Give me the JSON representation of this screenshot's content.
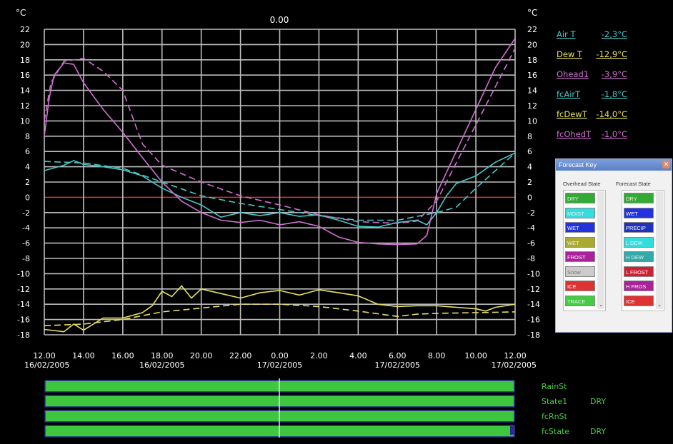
{
  "chart_data": {
    "type": "line",
    "unit_label": "°C",
    "top_value": "0.00",
    "y_range": [
      -18,
      22
    ],
    "y_ticks": [
      22,
      20,
      18,
      16,
      14,
      12,
      10,
      8,
      6,
      4,
      2,
      0,
      -2,
      -4,
      -6,
      -8,
      -10,
      -12,
      -14,
      -16,
      -18
    ],
    "x_range": [
      "2005-02-16 12:00",
      "2005-02-17 12:00"
    ],
    "x_tick_labels": [
      {
        "time": "12.00",
        "date": "16/02/2005"
      },
      {
        "time": "14.00",
        "date": ""
      },
      {
        "time": "16.00",
        "date": ""
      },
      {
        "time": "18.00",
        "date": "16/02/2005"
      },
      {
        "time": "20.00",
        "date": ""
      },
      {
        "time": "22.00",
        "date": ""
      },
      {
        "time": "0.00",
        "date": "17/02/2005"
      },
      {
        "time": "2.00",
        "date": ""
      },
      {
        "time": "4.00",
        "date": ""
      },
      {
        "time": "6.00",
        "date": "17/02/2005"
      },
      {
        "time": "8.00",
        "date": ""
      },
      {
        "time": "10.00",
        "date": ""
      },
      {
        "time": "12.00",
        "date": "17/02/2005"
      }
    ],
    "series": [
      {
        "name": "Air T",
        "value": "-2,3°C",
        "color": "#44c8c8",
        "dashed": false,
        "points": [
          [
            "2005-02-16 12:00",
            3.5
          ],
          [
            "2005-02-16 13:00",
            4.2
          ],
          [
            "2005-02-16 13:30",
            4.8
          ],
          [
            "2005-02-16 14:00",
            4.3
          ],
          [
            "2005-02-16 15:00",
            4.0
          ],
          [
            "2005-02-16 16:00",
            3.6
          ],
          [
            "2005-02-16 17:00",
            2.8
          ],
          [
            "2005-02-16 18:00",
            1.2
          ],
          [
            "2005-02-16 19:00",
            0
          ],
          [
            "2005-02-16 20:00",
            -1.0
          ],
          [
            "2005-02-16 21:00",
            -2.6
          ],
          [
            "2005-02-16 22:00",
            -2.0
          ],
          [
            "2005-02-16 23:00",
            -2.4
          ],
          [
            "2005-02-17 00:00",
            -2.0
          ],
          [
            "2005-02-17 01:00",
            -2.5
          ],
          [
            "2005-02-17 02:00",
            -2.3
          ],
          [
            "2005-02-17 03:00",
            -3.0
          ],
          [
            "2005-02-17 04:00",
            -3.8
          ],
          [
            "2005-02-17 05:00",
            -3.9
          ],
          [
            "2005-02-17 06:00",
            -3.3
          ],
          [
            "2005-02-17 07:00",
            -3.0
          ],
          [
            "2005-02-17 07:30",
            -3.6
          ],
          [
            "2005-02-17 08:00",
            -2.0
          ],
          [
            "2005-02-17 08:30",
            0.2
          ],
          [
            "2005-02-17 09:00",
            1.8
          ],
          [
            "2005-02-17 10:00",
            2.8
          ],
          [
            "2005-02-17 11:00",
            4.6
          ],
          [
            "2005-02-17 12:00",
            5.8
          ]
        ]
      },
      {
        "name": "Dew T",
        "value": "-12,9°C",
        "color": "#e8e060",
        "dashed": false,
        "points": [
          [
            "2005-02-16 12:00",
            -17.3
          ],
          [
            "2005-02-16 13:00",
            -17.6
          ],
          [
            "2005-02-16 13:30",
            -16.6
          ],
          [
            "2005-02-16 14:00",
            -17.4
          ],
          [
            "2005-02-16 15:00",
            -15.8
          ],
          [
            "2005-02-16 16:00",
            -15.8
          ],
          [
            "2005-02-16 17:00",
            -15.1
          ],
          [
            "2005-02-16 17:30",
            -14.2
          ],
          [
            "2005-02-16 18:00",
            -12.3
          ],
          [
            "2005-02-16 18:30",
            -13.0
          ],
          [
            "2005-02-16 19:00",
            -11.6
          ],
          [
            "2005-02-16 19:30",
            -13.2
          ],
          [
            "2005-02-16 20:00",
            -12.0
          ],
          [
            "2005-02-16 21:00",
            -12.6
          ],
          [
            "2005-02-16 22:00",
            -13.2
          ],
          [
            "2005-02-16 23:00",
            -12.5
          ],
          [
            "2005-02-17 00:00",
            -12.2
          ],
          [
            "2005-02-17 01:00",
            -12.8
          ],
          [
            "2005-02-17 02:00",
            -12.1
          ],
          [
            "2005-02-17 03:00",
            -12.5
          ],
          [
            "2005-02-17 04:00",
            -12.9
          ],
          [
            "2005-02-17 05:00",
            -14.0
          ],
          [
            "2005-02-17 06:00",
            -14.3
          ],
          [
            "2005-02-17 07:00",
            -14.2
          ],
          [
            "2005-02-17 08:00",
            -14.2
          ],
          [
            "2005-02-17 09:00",
            -14.4
          ],
          [
            "2005-02-17 10:00",
            -14.6
          ],
          [
            "2005-02-17 10:30",
            -14.9
          ],
          [
            "2005-02-17 11:00",
            -14.4
          ],
          [
            "2005-02-17 12:00",
            -14.0
          ]
        ]
      },
      {
        "name": "Ohead1",
        "value": "-3,9°C",
        "color": "#d070d0",
        "dashed": false,
        "points": [
          [
            "2005-02-16 12:00",
            8
          ],
          [
            "2005-02-16 12:15",
            13
          ],
          [
            "2005-02-16 12:30",
            16
          ],
          [
            "2005-02-16 13:00",
            17.6
          ],
          [
            "2005-02-16 13:30",
            17.4
          ],
          [
            "2005-02-16 14:00",
            15.0
          ],
          [
            "2005-02-16 15:00",
            11.5
          ],
          [
            "2005-02-16 16:00",
            8.5
          ],
          [
            "2005-02-16 17:00",
            5.2
          ],
          [
            "2005-02-16 18:00",
            2.0
          ],
          [
            "2005-02-16 19:00",
            -0.5
          ],
          [
            "2005-02-16 20:00",
            -2.0
          ],
          [
            "2005-02-16 21:00",
            -3.0
          ],
          [
            "2005-02-16 22:00",
            -3.3
          ],
          [
            "2005-02-16 23:00",
            -3.0
          ],
          [
            "2005-02-17 00:00",
            -3.6
          ],
          [
            "2005-02-17 01:00",
            -3.2
          ],
          [
            "2005-02-17 02:00",
            -3.8
          ],
          [
            "2005-02-17 03:00",
            -5.2
          ],
          [
            "2005-02-17 04:00",
            -5.9
          ],
          [
            "2005-02-17 05:00",
            -6.1
          ],
          [
            "2005-02-17 06:00",
            -6.2
          ],
          [
            "2005-02-17 07:00",
            -6.1
          ],
          [
            "2005-02-17 07:30",
            -5.0
          ],
          [
            "2005-02-17 08:00",
            0.5
          ],
          [
            "2005-02-17 09:00",
            6.0
          ],
          [
            "2005-02-17 10:00",
            11.5
          ],
          [
            "2005-02-17 11:00",
            17.0
          ],
          [
            "2005-02-17 12:00",
            20.8
          ]
        ]
      },
      {
        "name": "fcAirT",
        "value": "-1,8°C",
        "color": "#44c8c8",
        "dashed": true,
        "points": [
          [
            "2005-02-16 12:00",
            4.7
          ],
          [
            "2005-02-16 14:00",
            4.5
          ],
          [
            "2005-02-16 16:00",
            3.8
          ],
          [
            "2005-02-16 18:00",
            2.0
          ],
          [
            "2005-02-16 20:00",
            0.2
          ],
          [
            "2005-02-16 22:00",
            -0.8
          ],
          [
            "2005-02-17 00:00",
            -1.6
          ],
          [
            "2005-02-17 02:00",
            -2.4
          ],
          [
            "2005-02-17 04:00",
            -3.0
          ],
          [
            "2005-02-17 06:00",
            -3.0
          ],
          [
            "2005-02-17 07:00",
            -2.5
          ],
          [
            "2005-02-17 08:00",
            -2.0
          ],
          [
            "2005-02-17 09:00",
            -1.3
          ],
          [
            "2005-02-17 10:00",
            1.2
          ],
          [
            "2005-02-17 11:00",
            3.5
          ],
          [
            "2005-02-17 12:00",
            5.8
          ]
        ]
      },
      {
        "name": "fcDewT",
        "value": "-14,0°C",
        "color": "#e8e060",
        "dashed": true,
        "points": [
          [
            "2005-02-16 12:00",
            -16.8
          ],
          [
            "2005-02-16 14:00",
            -16.6
          ],
          [
            "2005-02-16 16:00",
            -16.0
          ],
          [
            "2005-02-16 18:00",
            -15.0
          ],
          [
            "2005-02-16 20:00",
            -14.5
          ],
          [
            "2005-02-16 22:00",
            -14.0
          ],
          [
            "2005-02-17 00:00",
            -14.0
          ],
          [
            "2005-02-17 02:00",
            -14.3
          ],
          [
            "2005-02-17 04:00",
            -14.9
          ],
          [
            "2005-02-17 06:00",
            -15.6
          ],
          [
            "2005-02-17 07:00",
            -15.3
          ],
          [
            "2005-02-17 08:00",
            -15.2
          ],
          [
            "2005-02-17 10:00",
            -15.1
          ],
          [
            "2005-02-17 12:00",
            -15.0
          ]
        ]
      },
      {
        "name": "fcOhedT",
        "value": "-1,0°C",
        "color": "#d070d0",
        "dashed": true,
        "points": [
          [
            "2005-02-16 12:00",
            10
          ],
          [
            "2005-02-16 12:20",
            15
          ],
          [
            "2005-02-16 13:00",
            17.8
          ],
          [
            "2005-02-16 14:00",
            18.2
          ],
          [
            "2005-02-16 15:00",
            16.5
          ],
          [
            "2005-02-16 16:00",
            14.0
          ],
          [
            "2005-02-16 17:00",
            7.0
          ],
          [
            "2005-02-16 18:00",
            4.2
          ],
          [
            "2005-02-16 20:00",
            2.0
          ],
          [
            "2005-02-16 22:00",
            0.2
          ],
          [
            "2005-02-17 00:00",
            -1.0
          ],
          [
            "2005-02-17 02:00",
            -2.3
          ],
          [
            "2005-02-17 04:00",
            -3.2
          ],
          [
            "2005-02-17 06:00",
            -3.4
          ],
          [
            "2005-02-17 07:00",
            -3.1
          ],
          [
            "2005-02-17 08:00",
            -0.5
          ],
          [
            "2005-02-17 09:00",
            4.5
          ],
          [
            "2005-02-17 10:00",
            9.5
          ],
          [
            "2005-02-17 11:00",
            14.5
          ],
          [
            "2005-02-17 12:00",
            19.5
          ]
        ]
      }
    ],
    "grid": true,
    "legend_position": "right"
  },
  "status_bars": [
    {
      "label": "RainSt",
      "value": ""
    },
    {
      "label": "State1",
      "value": "DRY"
    },
    {
      "label": "fcRnSt",
      "value": ""
    },
    {
      "label": "fcState",
      "value": "DRY"
    }
  ],
  "forecast_key": {
    "title": "Forecast Key",
    "overhead_header": "Overhead State",
    "forecast_header": "Forecast State",
    "overhead_items": [
      {
        "label": "DRY",
        "bg": "#33aa33",
        "fg": "#eeeeee"
      },
      {
        "label": "MOIST",
        "bg": "#33dddd",
        "fg": "#eeeeee"
      },
      {
        "label": "WET",
        "bg": "#2233dd",
        "fg": "#ffffff"
      },
      {
        "label": "WET",
        "bg": "#aaaa33",
        "fg": "#eeeeee"
      },
      {
        "label": "FROST",
        "bg": "#aa2299",
        "fg": "#ffffff"
      },
      {
        "label": "Snow",
        "bg": "#cccccc",
        "fg": "#777777"
      },
      {
        "label": "ICE",
        "bg": "#dd3333",
        "fg": "#ffffff"
      },
      {
        "label": "TRACE",
        "bg": "#44cc44",
        "fg": "#eeeeee"
      }
    ],
    "forecast_items": [
      {
        "label": "DRY",
        "bg": "#33aa33",
        "fg": "#eeeeee"
      },
      {
        "label": "WET",
        "bg": "#2233dd",
        "fg": "#ffffff"
      },
      {
        "label": "PRECIP",
        "bg": "#2233bb",
        "fg": "#ffffff"
      },
      {
        "label": "L DEW",
        "bg": "#33dddd",
        "fg": "#eeeeee"
      },
      {
        "label": "H DEW",
        "bg": "#33aaaa",
        "fg": "#eeeeee"
      },
      {
        "label": "L FROST",
        "bg": "#cc2233",
        "fg": "#ffffff"
      },
      {
        "label": "H FROS",
        "bg": "#aa2299",
        "fg": "#ffffff"
      },
      {
        "label": "ICE",
        "bg": "#dd3333",
        "fg": "#ffffff"
      }
    ],
    "close_icon": "close-icon",
    "scroll_down_icon": "chevron-down-icon"
  }
}
